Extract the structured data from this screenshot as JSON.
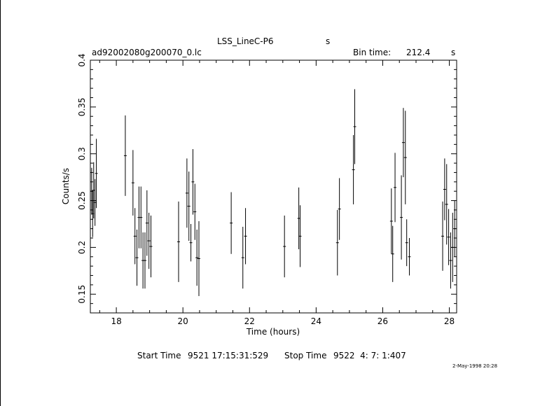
{
  "header": {
    "object_name": "LSS_LineC-P6",
    "object_unit": "s",
    "filename": "ad92002080g200070_0.lc",
    "bin_label": "Bin time:",
    "bin_value": "212.4",
    "bin_unit": "s"
  },
  "footer": {
    "start_label": "Start Time",
    "start_value": "9521 17:15:31:529",
    "stop_label": "Stop Time",
    "stop_value": "9522  4: 7: 1:407",
    "stamp": "2-May-1998 20:28"
  },
  "chart_data": {
    "type": "scatter",
    "xlabel": "Time (hours)",
    "ylabel": "Counts/s",
    "xlim": [
      17.22,
      28.22
    ],
    "ylim": [
      0.13,
      0.4
    ],
    "xticks": [
      18,
      20,
      22,
      24,
      26,
      28
    ],
    "xtick_labels": [
      "18",
      "20",
      "22",
      "24",
      "26",
      "28"
    ],
    "yticks": [
      0.15,
      0.2,
      0.25,
      0.3,
      0.35,
      0.4
    ],
    "ytick_labels": [
      "0.15",
      "0.2",
      "0.25",
      "0.3",
      "0.35",
      "0.4"
    ],
    "series": [
      {
        "x": [
          17.26,
          17.29,
          17.32,
          17.36,
          17.4,
          18.27,
          18.5,
          18.56,
          18.62,
          18.68,
          18.74,
          18.8,
          18.86,
          18.92,
          18.98,
          19.04,
          19.87,
          20.12,
          20.18,
          20.24,
          20.3,
          20.36,
          20.42,
          20.48,
          21.45,
          21.8,
          21.88,
          23.05,
          23.48,
          23.52,
          24.64,
          24.7,
          25.12,
          25.16,
          26.26,
          26.3,
          26.37,
          26.56,
          26.62,
          26.68,
          26.72,
          26.8,
          27.8,
          27.86,
          27.92,
          27.98,
          28.04,
          28.1,
          28.16
        ],
        "y": [
          0.26,
          0.236,
          0.261,
          0.248,
          0.279,
          0.298,
          0.269,
          0.212,
          0.189,
          0.232,
          0.232,
          0.186,
          0.186,
          0.226,
          0.207,
          0.201,
          0.206,
          0.258,
          0.244,
          0.205,
          0.27,
          0.238,
          0.189,
          0.188,
          0.226,
          0.189,
          0.212,
          0.201,
          0.231,
          0.212,
          0.205,
          0.241,
          0.283,
          0.329,
          0.228,
          0.193,
          0.264,
          0.232,
          0.312,
          0.296,
          0.205,
          0.19,
          0.212,
          0.262,
          0.246,
          0.211,
          0.186,
          0.2,
          0.22
        ],
        "yerr": [
          0.025,
          0.025,
          0.03,
          0.025,
          0.037,
          0.043,
          0.035,
          0.03,
          0.03,
          0.033,
          0.033,
          0.03,
          0.03,
          0.035,
          0.03,
          0.033,
          0.043,
          0.037,
          0.037,
          0.02,
          0.035,
          0.03,
          0.03,
          0.04,
          0.033,
          0.033,
          0.03,
          0.033,
          0.033,
          0.033,
          0.035,
          0.033,
          0.037,
          0.04,
          0.035,
          0.03,
          0.037,
          0.045,
          0.037,
          0.05,
          0.025,
          0.02,
          0.037,
          0.033,
          0.043,
          0.03,
          0.03,
          0.037,
          0.03
        ]
      }
    ]
  }
}
